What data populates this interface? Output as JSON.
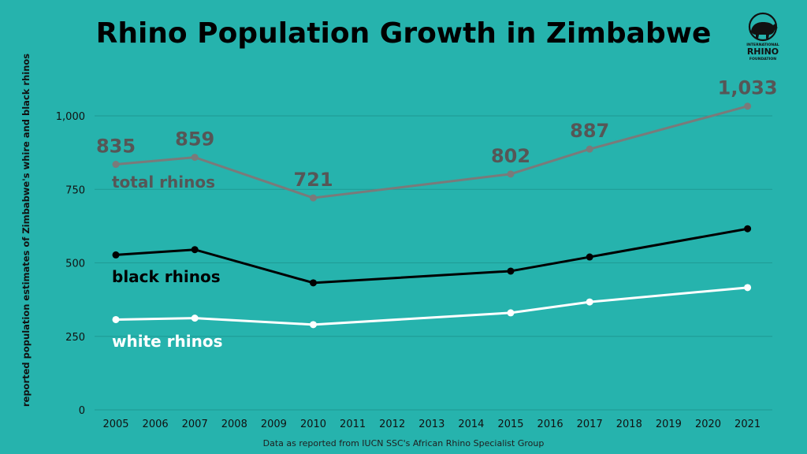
{
  "chart_data": {
    "type": "line",
    "title": "Rhino Population Growth in Zimbabwe",
    "ylabel": "reported population estimates of Zimbabwe's whire and black rhinos",
    "xlabel": "",
    "source": "Data as reported from IUCN SSC's African Rhino Specialist Group",
    "x_ticks": [
      "2005",
      "2006",
      "2007",
      "2008",
      "2009",
      "2010",
      "2011",
      "2012",
      "2013",
      "2014",
      "2015",
      "2016",
      "2017",
      "2018",
      "2019",
      "2020",
      "2021"
    ],
    "y_ticks": [
      "0",
      "250",
      "500",
      "750",
      "1,000"
    ],
    "ylim": [
      0,
      1100
    ],
    "xlim": [
      2005,
      2021
    ],
    "grid": true,
    "series": [
      {
        "name": "total rhinos",
        "color": "#7a7a7a",
        "label_color": "#565656",
        "x": [
          2005,
          2007,
          2010,
          2015,
          2017,
          2021
        ],
        "values": [
          835,
          859,
          721,
          802,
          887,
          1033
        ],
        "data_labels": [
          "835",
          "859",
          "721",
          "802",
          "887",
          "1,033"
        ]
      },
      {
        "name": "black rhinos",
        "color": "#000000",
        "label_color": "#000000",
        "x": [
          2005,
          2007,
          2010,
          2015,
          2017,
          2021
        ],
        "values": [
          527,
          545,
          432,
          472,
          520,
          616
        ]
      },
      {
        "name": "white rhinos",
        "color": "#ffffff",
        "label_color": "#ffffff",
        "x": [
          2005,
          2007,
          2010,
          2015,
          2017,
          2021
        ],
        "values": [
          307,
          312,
          290,
          330,
          367,
          416
        ]
      }
    ]
  },
  "logo": {
    "icon": "rhino-icon",
    "text_top": "INTERNATIONAL",
    "text_main": "RHINO",
    "text_bottom": "FOUNDATION"
  },
  "colors": {
    "background": "#26b3ad",
    "grid": "#1f9a94"
  }
}
